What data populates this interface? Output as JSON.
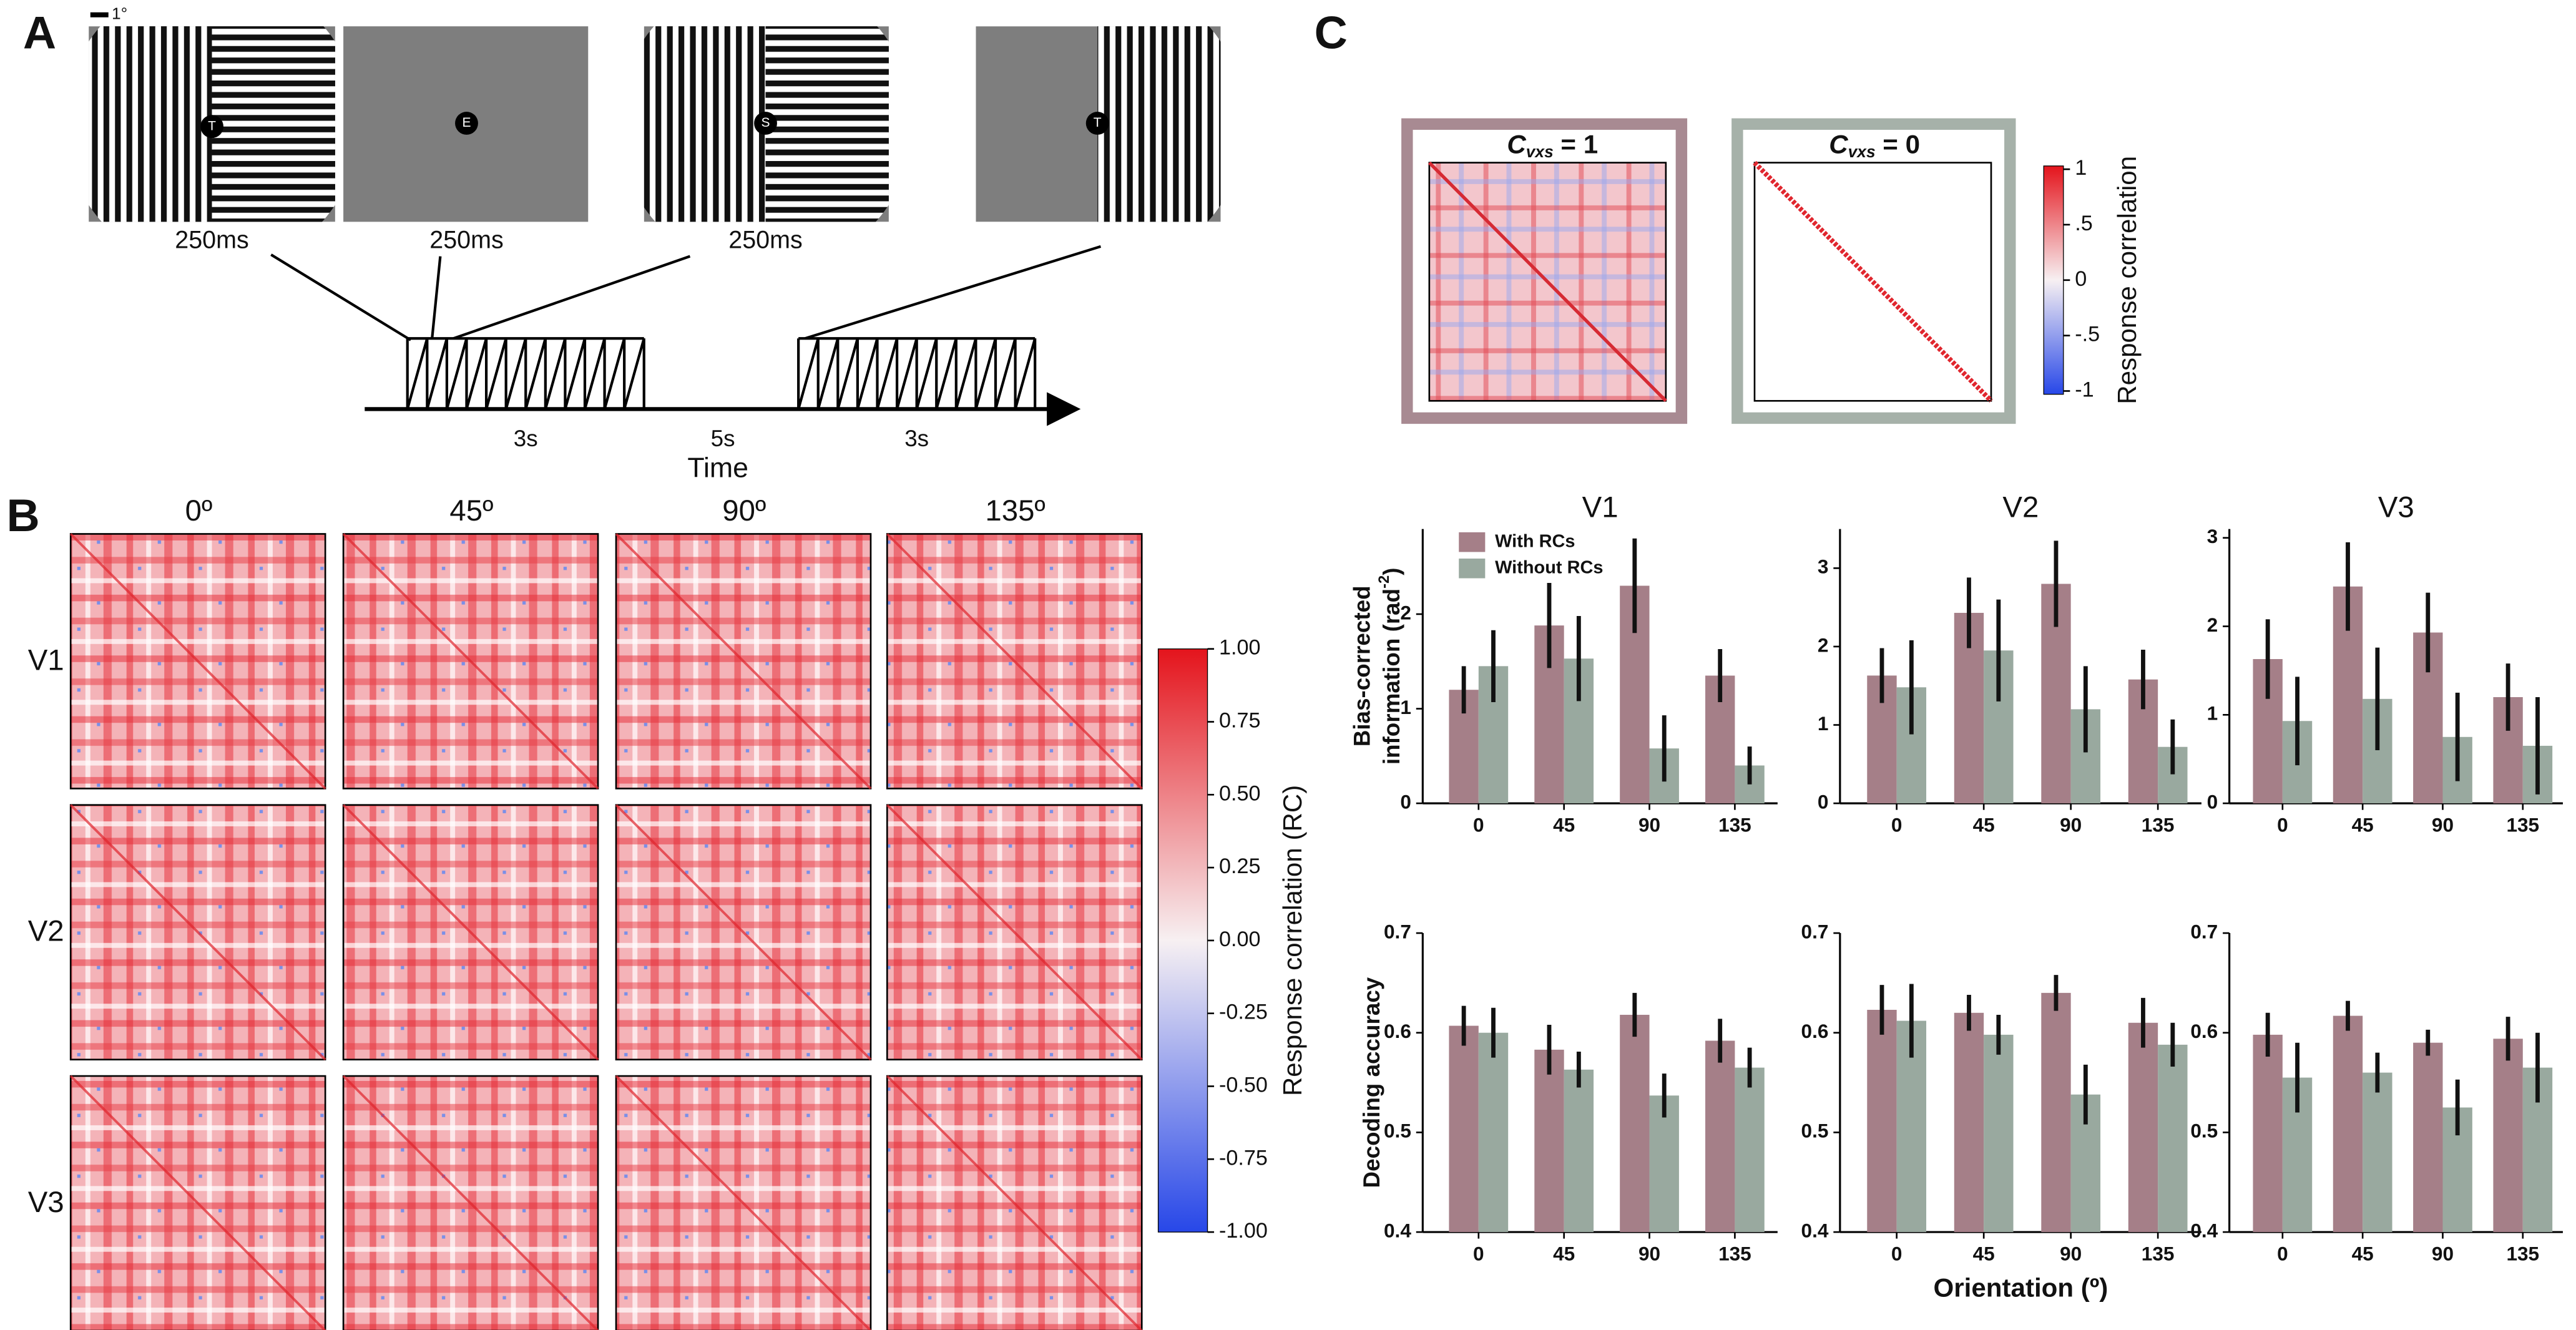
{
  "figure": {
    "panel_labels": [
      "A",
      "B",
      "C"
    ]
  },
  "panel_a": {
    "scale_label": "1°",
    "fixation_letters": [
      "T",
      "E",
      "S",
      "T"
    ],
    "durations": [
      "250ms",
      "250ms",
      "250ms"
    ],
    "timeline_labels": [
      "3s",
      "5s",
      "3s"
    ],
    "time_label": "Time"
  },
  "panel_b": {
    "columns": [
      "0º",
      "45º",
      "90º",
      "135º"
    ],
    "rows": [
      "V1",
      "V2",
      "V3"
    ],
    "colorbar": {
      "ylim": [
        -1,
        1
      ],
      "yticks": [
        {
          "value": 1,
          "label": "1.00"
        },
        {
          "value": 0.75,
          "label": "0.75"
        },
        {
          "value": 0.5,
          "label": "0.50"
        },
        {
          "value": 0.25,
          "label": "0.25"
        },
        {
          "value": 0,
          "label": "0.00"
        },
        {
          "value": -0.25,
          "label": "-0.25"
        },
        {
          "value": -0.5,
          "label": "-0.50"
        },
        {
          "value": -0.75,
          "label": "-0.75"
        },
        {
          "value": -1,
          "label": "-1.00"
        }
      ],
      "label": "Response correlation (RC)"
    }
  },
  "panel_c": {
    "titles": [
      {
        "symbol": "C",
        "subscript": "vxs",
        "rest": " = 1"
      },
      {
        "symbol": "C",
        "subscript": "vxs",
        "rest": " = 0"
      }
    ],
    "colorbar": {
      "ylim": [
        -1,
        1
      ],
      "yticks": [
        {
          "value": 1,
          "label": "1"
        },
        {
          "value": 0.5,
          "label": ".5"
        },
        0,
        {
          "value": -0.5,
          "label": "-.5"
        },
        {
          "value": -1,
          "label": "-1"
        }
      ],
      "label": "Response correlation"
    }
  },
  "chart_data": [
    {
      "type": "bar",
      "title": "V1",
      "categories": [
        "0",
        "45",
        "90",
        "135"
      ],
      "ylim": [
        0,
        2.9
      ],
      "yticks": [
        0,
        1,
        2
      ],
      "ylabel": {
        "line1": "Bias-corrected",
        "line2": "information (rad",
        "superscript": "-2",
        "close": ")"
      },
      "legend": "upper left",
      "series": [
        {
          "name": "With RCs",
          "color": "#a57f88",
          "values": [
            1.2,
            1.88,
            2.3,
            1.35
          ],
          "errors": [
            0.25,
            0.45,
            0.5,
            0.28
          ]
        },
        {
          "name": "Without RCs",
          "color": "#99a99f",
          "values": [
            1.45,
            1.53,
            0.58,
            0.4
          ],
          "errors": [
            0.38,
            0.45,
            0.35,
            0.2
          ]
        }
      ]
    },
    {
      "type": "bar",
      "title": "V2",
      "categories": [
        "0",
        "45",
        "90",
        "135"
      ],
      "ylim": [
        0,
        3.5
      ],
      "yticks": [
        0,
        1,
        2,
        3
      ],
      "series": [
        {
          "color": "#a57f88",
          "values": [
            1.63,
            2.43,
            2.8,
            1.58
          ],
          "errors": [
            0.35,
            0.45,
            0.55,
            0.38
          ]
        },
        {
          "color": "#99a99f",
          "values": [
            1.48,
            1.95,
            1.2,
            0.72
          ],
          "errors": [
            0.6,
            0.65,
            0.55,
            0.35
          ]
        }
      ]
    },
    {
      "type": "bar",
      "title": "V3",
      "categories": [
        "0",
        "45",
        "90",
        "135"
      ],
      "ylim": [
        0,
        3.1
      ],
      "yticks": [
        0,
        1,
        2,
        3
      ],
      "series": [
        {
          "color": "#a57f88",
          "values": [
            1.63,
            2.45,
            1.93,
            1.2
          ],
          "errors": [
            0.45,
            0.5,
            0.45,
            0.38
          ]
        },
        {
          "color": "#99a99f",
          "values": [
            0.93,
            1.18,
            0.75,
            0.65
          ],
          "errors": [
            0.5,
            0.58,
            0.5,
            0.55
          ]
        }
      ]
    },
    {
      "type": "bar",
      "categories": [
        "0",
        "45",
        "90",
        "135"
      ],
      "ylim": [
        0.4,
        0.7
      ],
      "yticks": [
        0.4,
        0.5,
        0.6,
        0.7
      ],
      "ylabel": {
        "line1": "Decoding accuracy"
      },
      "series": [
        {
          "color": "#a57f88",
          "values": [
            0.607,
            0.583,
            0.618,
            0.592
          ],
          "errors": [
            0.02,
            0.025,
            0.022,
            0.022
          ]
        },
        {
          "color": "#99a99f",
          "values": [
            0.6,
            0.563,
            0.537,
            0.565
          ],
          "errors": [
            0.025,
            0.018,
            0.022,
            0.02
          ]
        }
      ]
    },
    {
      "type": "bar",
      "categories": [
        "0",
        "45",
        "90",
        "135"
      ],
      "ylim": [
        0.4,
        0.7
      ],
      "yticks": [
        0.4,
        0.5,
        0.6,
        0.7
      ],
      "xlabel": "Orientation (º)",
      "series": [
        {
          "color": "#a57f88",
          "values": [
            0.623,
            0.62,
            0.64,
            0.61
          ],
          "errors": [
            0.025,
            0.018,
            0.018,
            0.025
          ]
        },
        {
          "color": "#99a99f",
          "values": [
            0.612,
            0.598,
            0.538,
            0.588
          ],
          "errors": [
            0.037,
            0.02,
            0.03,
            0.022
          ]
        }
      ]
    },
    {
      "type": "bar",
      "categories": [
        "0",
        "45",
        "90",
        "135"
      ],
      "ylim": [
        0.4,
        0.7
      ],
      "yticks": [
        0.4,
        0.5,
        0.6,
        0.7
      ],
      "series": [
        {
          "color": "#a57f88",
          "values": [
            0.598,
            0.617,
            0.59,
            0.594
          ],
          "errors": [
            0.022,
            0.015,
            0.013,
            0.022
          ]
        },
        {
          "color": "#99a99f",
          "values": [
            0.555,
            0.56,
            0.525,
            0.565
          ],
          "errors": [
            0.035,
            0.02,
            0.028,
            0.035
          ]
        }
      ]
    }
  ]
}
